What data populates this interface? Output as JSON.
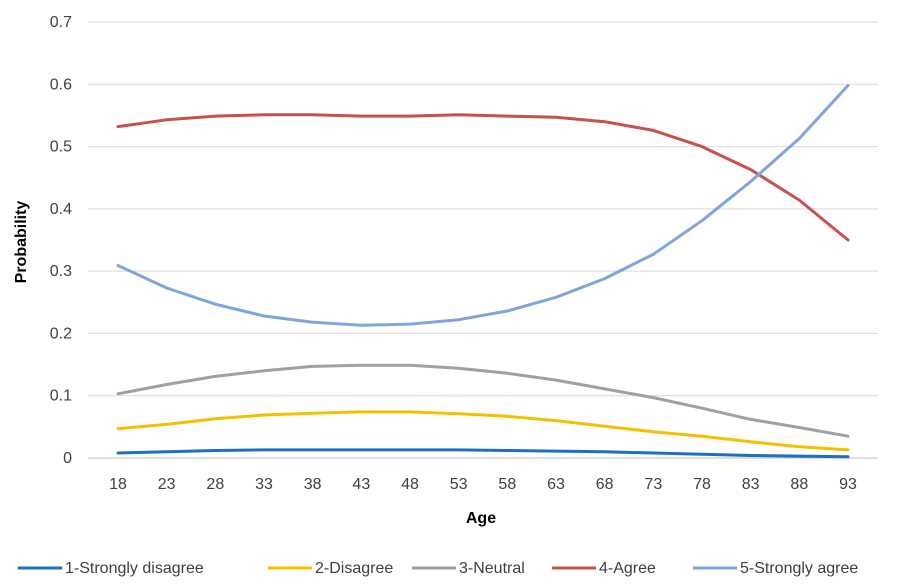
{
  "chart_data": {
    "type": "line",
    "title": "",
    "xlabel": "Age",
    "ylabel": "Probability",
    "x": [
      18,
      23,
      28,
      33,
      38,
      43,
      48,
      53,
      58,
      63,
      68,
      73,
      78,
      83,
      88,
      93
    ],
    "x_tick_labels": [
      "18",
      "23",
      "28",
      "33",
      "38",
      "43",
      "48",
      "53",
      "58",
      "63",
      "68",
      "73",
      "78",
      "83",
      "88",
      "93"
    ],
    "ylim": [
      0,
      0.7
    ],
    "y_ticks": [
      0,
      0.1,
      0.2,
      0.3,
      0.4,
      0.5,
      0.6,
      0.7
    ],
    "y_tick_labels": [
      "0",
      "0.1",
      "0.2",
      "0.3",
      "0.4",
      "0.5",
      "0.6",
      "0.7"
    ],
    "grid": "horizontal",
    "legend_position": "bottom",
    "series": [
      {
        "name": "1-Strongly disagree",
        "color": "#1f6fc0",
        "values": [
          0.008,
          0.01,
          0.012,
          0.013,
          0.013,
          0.013,
          0.013,
          0.013,
          0.012,
          0.011,
          0.01,
          0.008,
          0.006,
          0.004,
          0.003,
          0.002
        ]
      },
      {
        "name": "2-Disagree",
        "color": "#f5c000",
        "values": [
          0.047,
          0.054,
          0.063,
          0.069,
          0.072,
          0.074,
          0.074,
          0.071,
          0.067,
          0.06,
          0.051,
          0.042,
          0.035,
          0.026,
          0.018,
          0.013
        ]
      },
      {
        "name": "3-Neutral",
        "color": "#a0a0a0",
        "values": [
          0.103,
          0.118,
          0.131,
          0.14,
          0.147,
          0.149,
          0.149,
          0.144,
          0.136,
          0.125,
          0.111,
          0.097,
          0.08,
          0.062,
          0.049,
          0.035
        ]
      },
      {
        "name": "4-Agree",
        "color": "#c9504b",
        "values": [
          0.532,
          0.543,
          0.549,
          0.551,
          0.551,
          0.549,
          0.549,
          0.551,
          0.549,
          0.547,
          0.54,
          0.526,
          0.5,
          0.463,
          0.414,
          0.35
        ]
      },
      {
        "name": "5-Strongly agree",
        "color": "#7ea6dc",
        "values": [
          0.309,
          0.273,
          0.247,
          0.228,
          0.218,
          0.213,
          0.215,
          0.222,
          0.236,
          0.258,
          0.288,
          0.327,
          0.381,
          0.444,
          0.513,
          0.598
        ]
      }
    ]
  }
}
